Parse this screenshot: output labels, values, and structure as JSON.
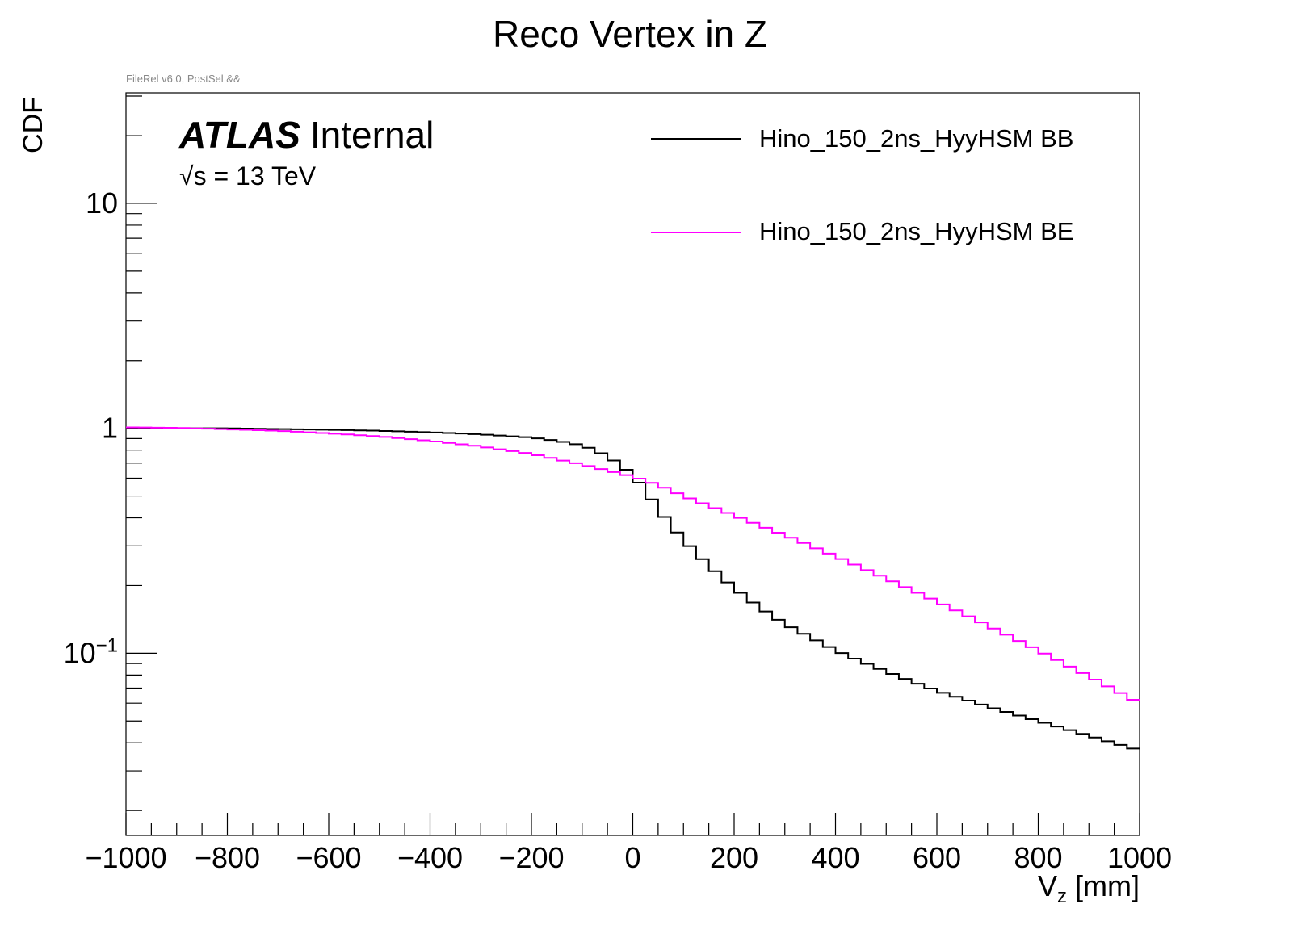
{
  "chart_data": {
    "type": "line",
    "title": "Reco Vertex in Z",
    "note": "FileRel v6.0, PostSel &&",
    "xlabel_main": "V",
    "xlabel_sub": "z",
    "xlabel_unit": " [mm]",
    "ylabel": "CDF",
    "xlim": [
      -1000,
      1000
    ],
    "ylim": [
      0.0155,
      31.0
    ],
    "yscale": "log",
    "x_ticks": [
      {
        "value": -1000,
        "label": "−1000"
      },
      {
        "value": -800,
        "label": "−800"
      },
      {
        "value": -600,
        "label": "−600"
      },
      {
        "value": -400,
        "label": "−400"
      },
      {
        "value": -200,
        "label": "−200"
      },
      {
        "value": 0,
        "label": "0"
      },
      {
        "value": 200,
        "label": "200"
      },
      {
        "value": 400,
        "label": "400"
      },
      {
        "value": 600,
        "label": "600"
      },
      {
        "value": 800,
        "label": "800"
      },
      {
        "value": 1000,
        "label": "1000"
      }
    ],
    "y_ticks": [
      {
        "value": 10,
        "base": "10",
        "exp": ""
      },
      {
        "value": 1,
        "base": "1",
        "exp": ""
      },
      {
        "value": 0.1,
        "base": "10",
        "exp": "−1"
      }
    ],
    "atlas_label": "ATLAS",
    "atlas_status": "Internal",
    "energy_sqrt": "√",
    "energy_rest": "s = 13 TeV",
    "legend_position": "top-right",
    "bin_width": 25,
    "series": [
      {
        "name": "Hino_150_2ns_HyyHSM BB",
        "color": "#000000",
        "points": [
          [
            -1000,
            1.0
          ],
          [
            -800,
            1.0
          ],
          [
            -600,
            0.985
          ],
          [
            -500,
            0.975
          ],
          [
            -400,
            0.96
          ],
          [
            -300,
            0.94
          ],
          [
            -200,
            0.91
          ],
          [
            -150,
            0.88
          ],
          [
            -100,
            0.84
          ],
          [
            -75,
            0.8
          ],
          [
            -50,
            0.75
          ],
          [
            -25,
            0.69
          ],
          [
            0,
            0.62
          ],
          [
            25,
            0.53
          ],
          [
            50,
            0.44
          ],
          [
            75,
            0.37
          ],
          [
            100,
            0.32
          ],
          [
            125,
            0.28
          ],
          [
            150,
            0.245
          ],
          [
            200,
            0.195
          ],
          [
            250,
            0.16
          ],
          [
            300,
            0.135
          ],
          [
            350,
            0.118
          ],
          [
            400,
            0.103
          ],
          [
            450,
            0.092
          ],
          [
            500,
            0.083
          ],
          [
            550,
            0.075
          ],
          [
            600,
            0.068
          ],
          [
            700,
            0.058
          ],
          [
            800,
            0.05
          ],
          [
            900,
            0.043
          ],
          [
            1000,
            0.037
          ]
        ]
      },
      {
        "name": "Hino_150_2ns_HyyHSM BE",
        "color": "#ff00ff",
        "points": [
          [
            -1000,
            1.01
          ],
          [
            -900,
            1.005
          ],
          [
            -800,
            0.99
          ],
          [
            -700,
            0.975
          ],
          [
            -600,
            0.95
          ],
          [
            -500,
            0.92
          ],
          [
            -400,
            0.88
          ],
          [
            -300,
            0.83
          ],
          [
            -200,
            0.77
          ],
          [
            -100,
            0.69
          ],
          [
            0,
            0.61
          ],
          [
            50,
            0.56
          ],
          [
            100,
            0.5
          ],
          [
            200,
            0.41
          ],
          [
            300,
            0.335
          ],
          [
            400,
            0.27
          ],
          [
            500,
            0.215
          ],
          [
            600,
            0.17
          ],
          [
            700,
            0.133
          ],
          [
            800,
            0.103
          ],
          [
            900,
            0.079
          ],
          [
            1000,
            0.06
          ]
        ]
      }
    ]
  }
}
